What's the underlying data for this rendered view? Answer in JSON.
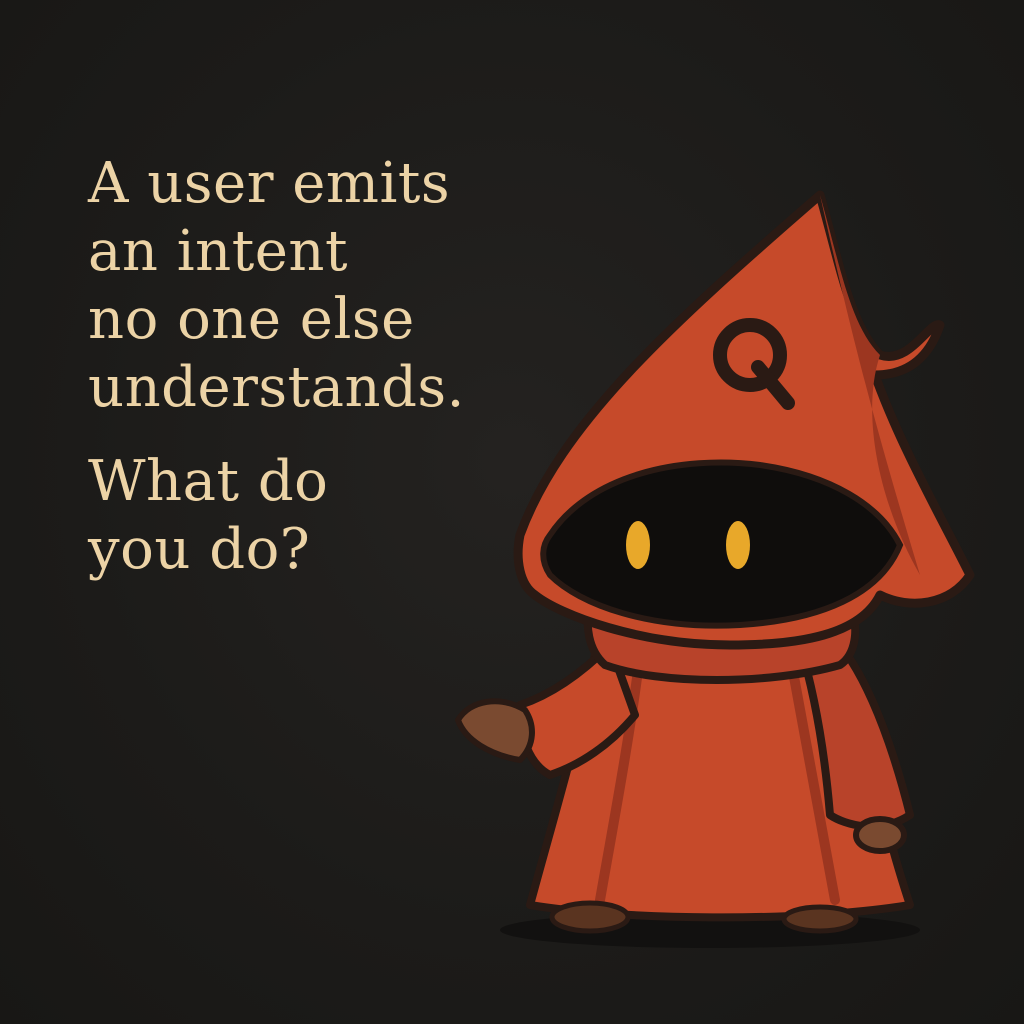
{
  "question": {
    "premise_lines": [
      "A user emits",
      "an intent",
      "no one else",
      "understands."
    ],
    "prompt_lines": [
      "What do",
      "you do?"
    ]
  },
  "mascot": {
    "name": "red-hooded-wizard",
    "hat_letter": "Q",
    "colors": {
      "robe": "#c64a2a",
      "robe_shadow": "#9c3620",
      "outline": "#2a1a14",
      "face": "#0f0d0c",
      "eyes": "#e8a82a",
      "hands": "#7a4a30",
      "text": "#ecd3a6",
      "background": "#1c1b19"
    }
  }
}
